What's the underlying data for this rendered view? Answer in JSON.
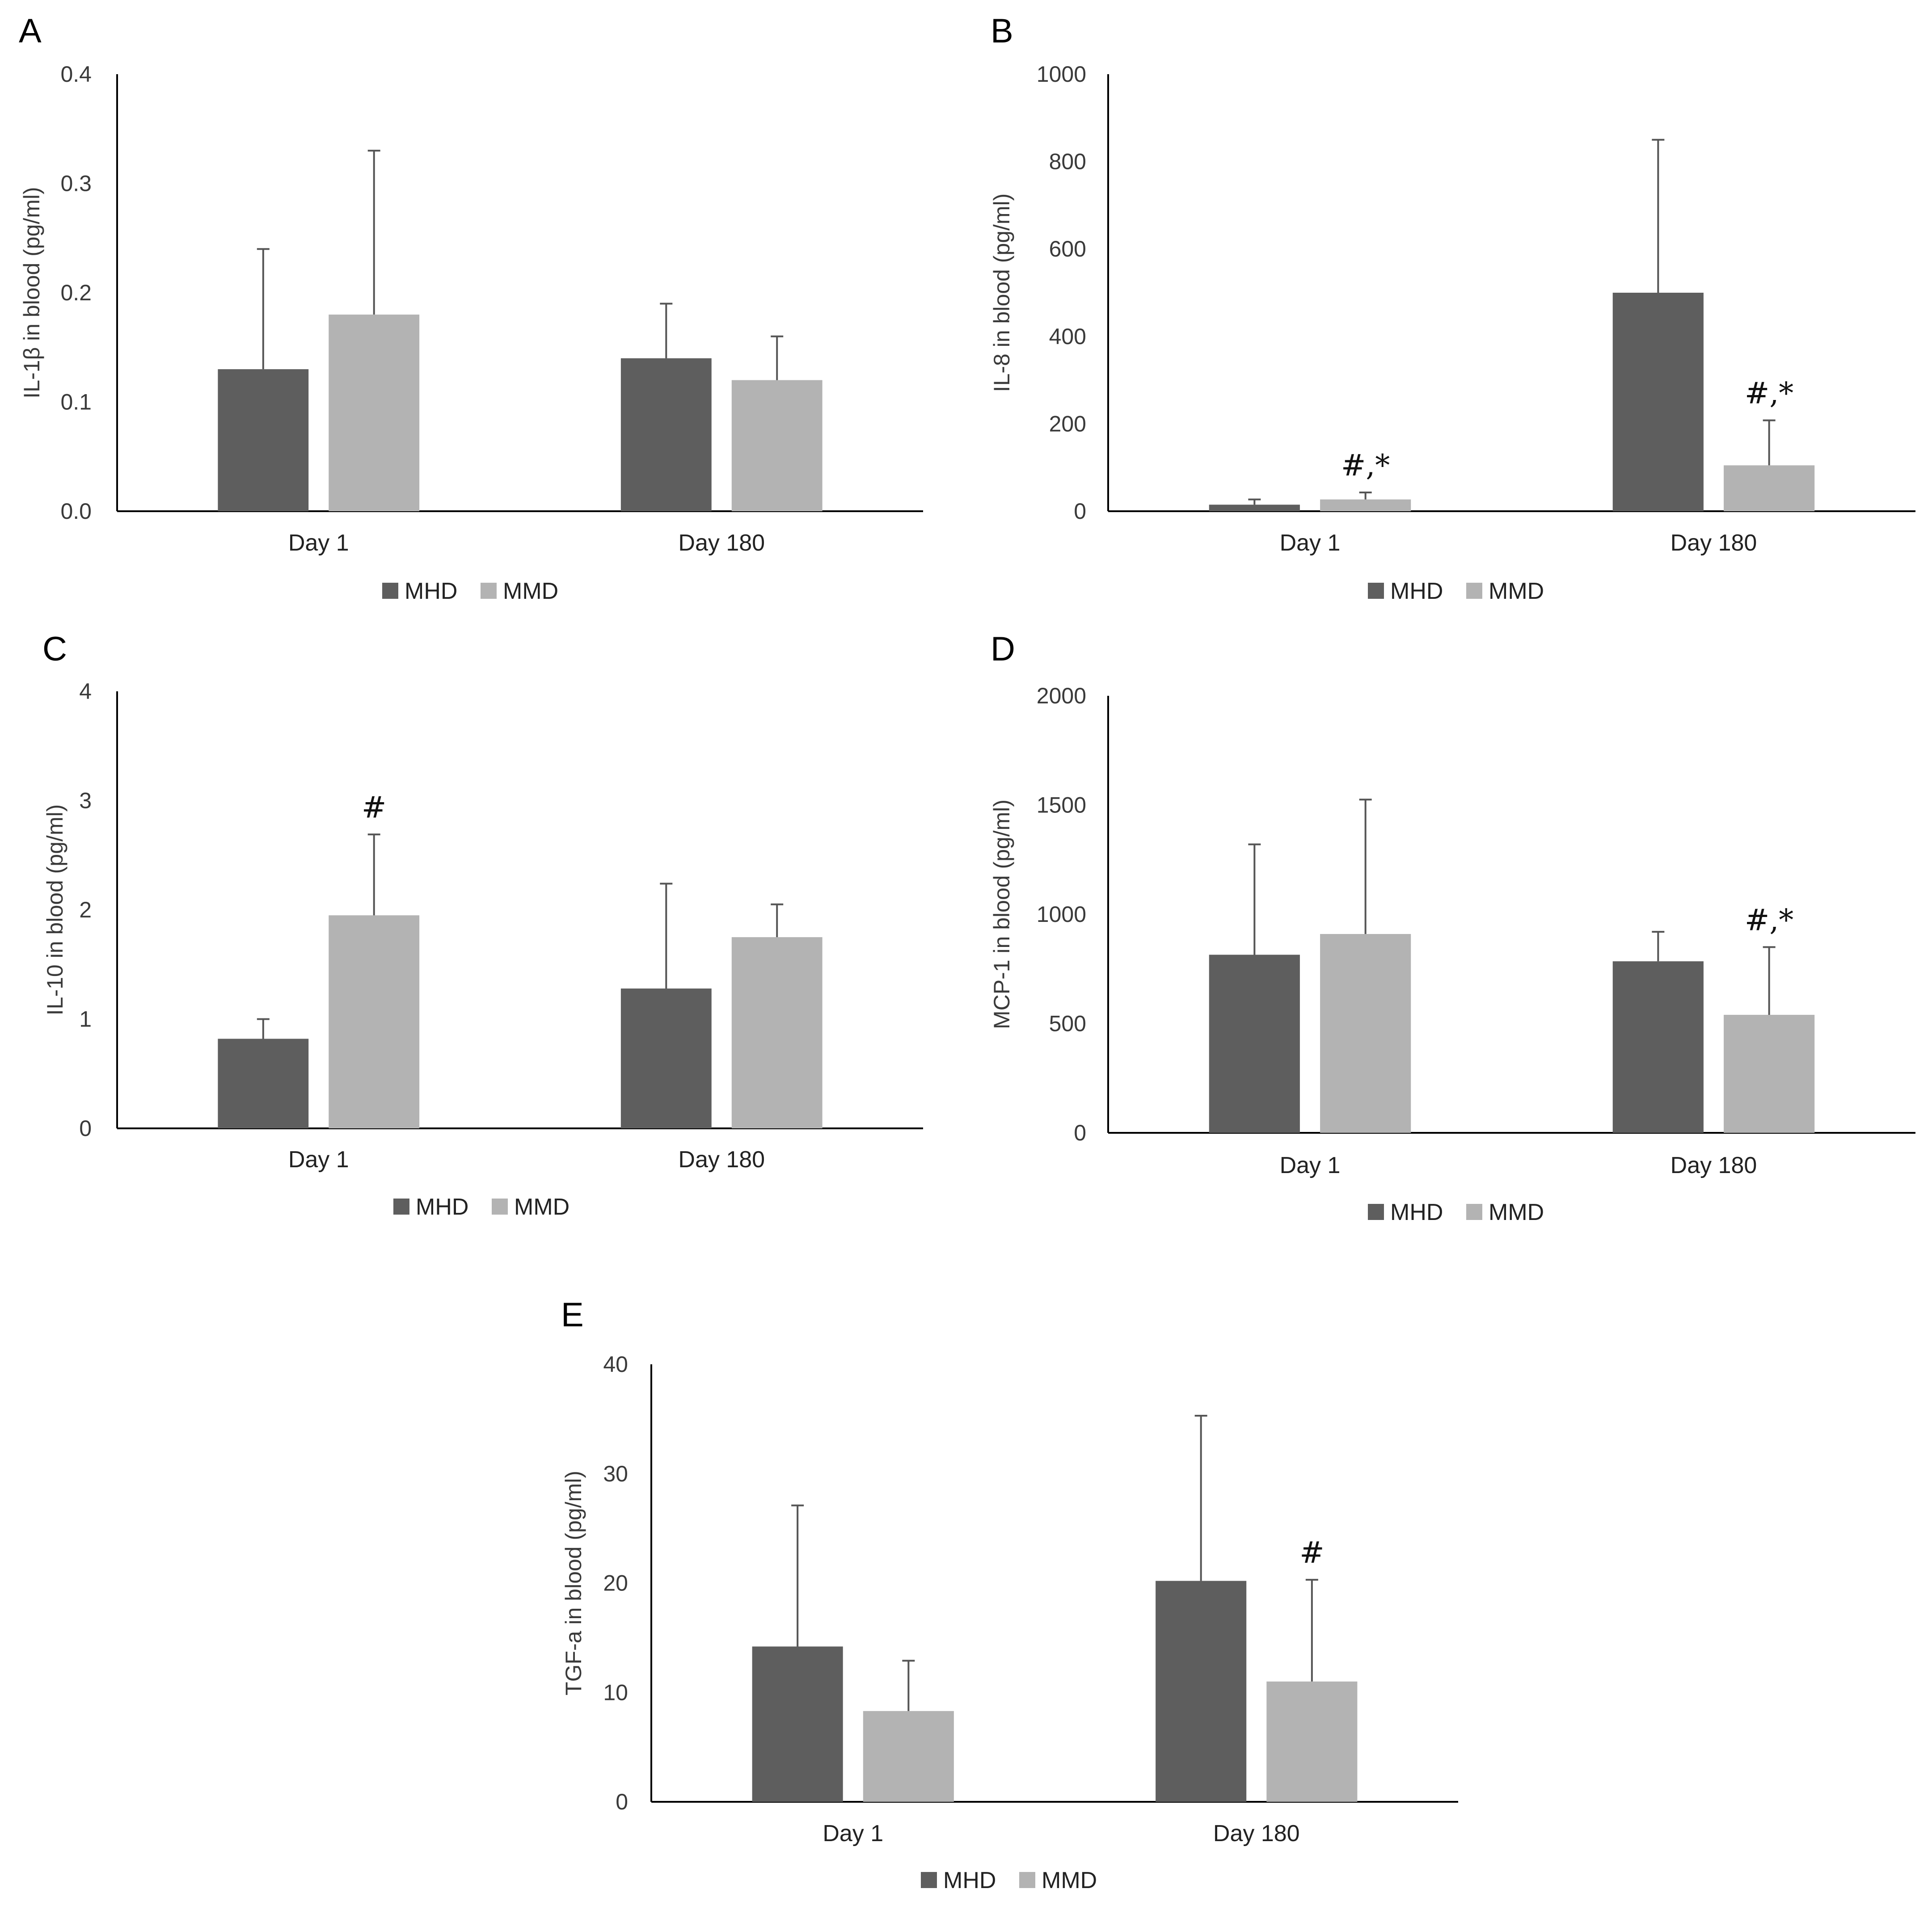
{
  "colors": {
    "MHD": "#5e5e5e",
    "MMD": "#b3b3b3",
    "axis": "#000000",
    "error_bar": "#555555"
  },
  "chart_data": [
    {
      "panel": "A",
      "type": "bar",
      "title": "",
      "xlabel": "",
      "ylabel": "IL-1β in blood (pg/ml)",
      "ylim": [
        0,
        0.4
      ],
      "yticks": [
        "0.0",
        "0.1",
        "0.2",
        "0.3",
        "0.4"
      ],
      "categories": [
        "Day 1",
        "Day 180"
      ],
      "series": [
        {
          "name": "MHD",
          "values": [
            0.13,
            0.14
          ],
          "errors": [
            0.11,
            0.05
          ],
          "annotations": [
            "",
            ""
          ]
        },
        {
          "name": "MMD",
          "values": [
            0.18,
            0.12
          ],
          "errors": [
            0.15,
            0.04
          ],
          "annotations": [
            "",
            ""
          ]
        }
      ],
      "legend": [
        "MHD",
        "MMD"
      ],
      "grid": false
    },
    {
      "panel": "B",
      "type": "bar",
      "title": "",
      "xlabel": "",
      "ylabel": "IL-8 in blood (pg/ml)",
      "ylim": [
        0,
        1000
      ],
      "yticks": [
        "0",
        "200",
        "400",
        "600",
        "800",
        "1000"
      ],
      "categories": [
        "Day 1",
        "Day 180"
      ],
      "series": [
        {
          "name": "MHD",
          "values": [
            15,
            500
          ],
          "errors": [
            12,
            350
          ],
          "annotations": [
            "",
            ""
          ]
        },
        {
          "name": "MMD",
          "values": [
            27,
            105
          ],
          "errors": [
            16,
            103
          ],
          "annotations": [
            "#,*",
            "#,*"
          ]
        }
      ],
      "legend": [
        "MHD",
        "MMD"
      ],
      "grid": false
    },
    {
      "panel": "C",
      "type": "bar",
      "title": "",
      "xlabel": "",
      "ylabel": "IL-10 in blood (pg/ml)",
      "ylim": [
        0,
        4
      ],
      "yticks": [
        "0",
        "1",
        "2",
        "3",
        "4"
      ],
      "categories": [
        "Day 1",
        "Day 180"
      ],
      "series": [
        {
          "name": "MHD",
          "values": [
            0.82,
            1.28
          ],
          "errors": [
            0.18,
            0.96
          ],
          "annotations": [
            "",
            ""
          ]
        },
        {
          "name": "MMD",
          "values": [
            1.95,
            1.75
          ],
          "errors": [
            0.74,
            0.3
          ],
          "annotations": [
            "#",
            ""
          ]
        }
      ],
      "legend": [
        "MHD",
        "MMD"
      ],
      "grid": false
    },
    {
      "panel": "D",
      "type": "bar",
      "title": "",
      "xlabel": "",
      "ylabel": "MCP-1 in blood (pg/ml)",
      "ylim": [
        0,
        2000
      ],
      "yticks": [
        "0",
        "500",
        "1000",
        "1500",
        "2000"
      ],
      "categories": [
        "Day 1",
        "Day 180"
      ],
      "series": [
        {
          "name": "MHD",
          "values": [
            815,
            785
          ],
          "errors": [
            505,
            135
          ],
          "annotations": [
            "",
            ""
          ]
        },
        {
          "name": "MMD",
          "values": [
            910,
            540
          ],
          "errors": [
            615,
            310
          ],
          "annotations": [
            "",
            "#,*"
          ]
        }
      ],
      "legend": [
        "MHD",
        "MMD"
      ],
      "grid": false
    },
    {
      "panel": "E",
      "type": "bar",
      "title": "",
      "xlabel": "",
      "ylabel": "TGF-a in blood (pg/ml)",
      "ylim": [
        0,
        40
      ],
      "yticks": [
        "0",
        "10",
        "20",
        "30",
        "40"
      ],
      "categories": [
        "Day 1",
        "Day 180"
      ],
      "series": [
        {
          "name": "MHD",
          "values": [
            14.2,
            20.2
          ],
          "errors": [
            12.9,
            15.1
          ],
          "annotations": [
            "",
            ""
          ]
        },
        {
          "name": "MMD",
          "values": [
            8.3,
            11
          ],
          "errors": [
            4.6,
            9.3
          ],
          "annotations": [
            "",
            "#"
          ]
        }
      ],
      "legend": [
        "MHD",
        "MMD"
      ],
      "grid": false
    }
  ]
}
